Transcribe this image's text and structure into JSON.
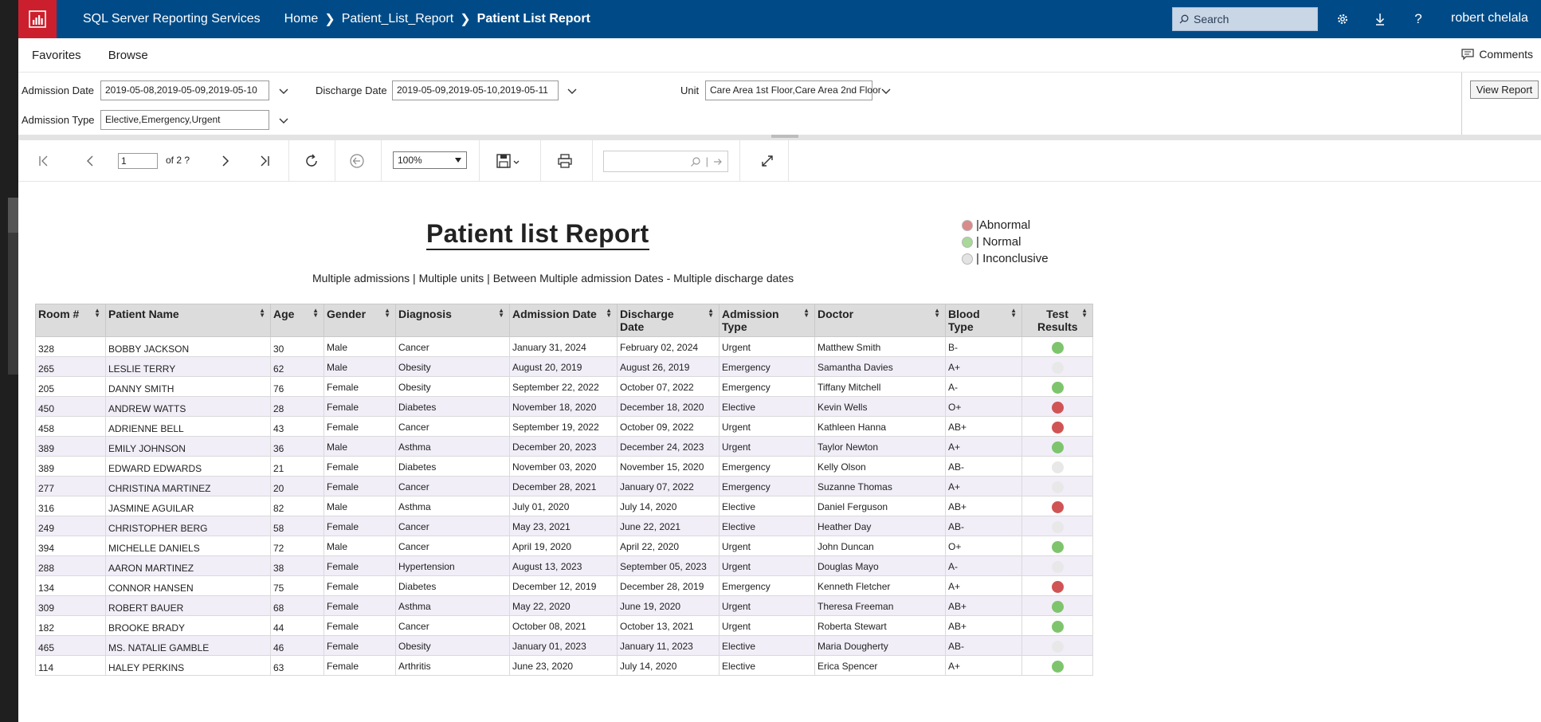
{
  "app": {
    "title": "SQL Server Reporting Services",
    "breadcrumbs": [
      "Home",
      "Patient_List_Report",
      "Patient List Report"
    ],
    "search_placeholder": "Search",
    "user": "robert chelala",
    "icons": [
      "settings-icon",
      "download-icon",
      "help-icon"
    ]
  },
  "nav": {
    "favorites": "Favorites",
    "browse": "Browse",
    "comments": "Comments"
  },
  "params": {
    "admission_date_label": "Admission Date",
    "admission_date_value": "2019-05-08,2019-05-09,2019-05-10",
    "discharge_date_label": "Discharge Date",
    "discharge_date_value": "2019-05-09,2019-05-10,2019-05-11",
    "unit_label": "Unit",
    "unit_value": "Care Area 1st Floor,Care Area 2nd Floor",
    "admission_type_label": "Admission Type",
    "admission_type_value": "Elective,Emergency,Urgent",
    "view_report": "View Report"
  },
  "toolbar": {
    "page_current": "1",
    "page_of": "of 2 ?",
    "zoom": "100%"
  },
  "report": {
    "title": "Patient list Report",
    "subtitle": "Multiple admissions | Multiple units | Between Multiple admission Dates  - Multiple discharge dates",
    "legend": [
      {
        "label": "|Abnormal",
        "color": "#d98a8a"
      },
      {
        "label": "| Normal",
        "color": "#a8d89a"
      },
      {
        "label": "| Inconclusive",
        "color": "#e3e3e3"
      }
    ],
    "status_colors": {
      "abnormal": "#d05454",
      "normal": "#7ec46c",
      "inconclusive": "#e8e8e8"
    },
    "columns": [
      "Room #",
      "Patient Name",
      "Age",
      "Gender",
      "Diagnosis",
      "Admission Date",
      "Discharge Date",
      "Admission Type",
      "Doctor",
      "Blood Type",
      "Test Results"
    ],
    "rows": [
      {
        "room": "328",
        "name": "BOBBY JACKSON",
        "age": "30",
        "gender": "Male",
        "diagnosis": "Cancer",
        "admission": "January 31, 2024",
        "discharge": "February 02, 2024",
        "type": "Urgent",
        "doctor": "Matthew Smith",
        "blood": "B-",
        "result": "normal"
      },
      {
        "room": "265",
        "name": "LESLIE TERRY",
        "age": "62",
        "gender": "Male",
        "diagnosis": "Obesity",
        "admission": "August 20, 2019",
        "discharge": "August 26, 2019",
        "type": "Emergency",
        "doctor": "Samantha Davies",
        "blood": "A+",
        "result": "inconclusive"
      },
      {
        "room": "205",
        "name": "DANNY SMITH",
        "age": "76",
        "gender": "Female",
        "diagnosis": "Obesity",
        "admission": "September 22, 2022",
        "discharge": "October 07, 2022",
        "type": "Emergency",
        "doctor": "Tiffany Mitchell",
        "blood": "A-",
        "result": "normal"
      },
      {
        "room": "450",
        "name": "ANDREW WATTS",
        "age": "28",
        "gender": "Female",
        "diagnosis": "Diabetes",
        "admission": "November 18, 2020",
        "discharge": "December 18, 2020",
        "type": "Elective",
        "doctor": "Kevin Wells",
        "blood": "O+",
        "result": "abnormal"
      },
      {
        "room": "458",
        "name": "ADRIENNE BELL",
        "age": "43",
        "gender": "Female",
        "diagnosis": "Cancer",
        "admission": "September 19, 2022",
        "discharge": "October 09, 2022",
        "type": "Urgent",
        "doctor": "Kathleen Hanna",
        "blood": "AB+",
        "result": "abnormal"
      },
      {
        "room": "389",
        "name": "EMILY JOHNSON",
        "age": "36",
        "gender": "Male",
        "diagnosis": "Asthma",
        "admission": "December 20, 2023",
        "discharge": "December 24, 2023",
        "type": "Urgent",
        "doctor": "Taylor Newton",
        "blood": "A+",
        "result": "normal"
      },
      {
        "room": "389",
        "name": "EDWARD EDWARDS",
        "age": "21",
        "gender": "Female",
        "diagnosis": "Diabetes",
        "admission": "November 03, 2020",
        "discharge": "November 15, 2020",
        "type": "Emergency",
        "doctor": "Kelly Olson",
        "blood": "AB-",
        "result": "inconclusive"
      },
      {
        "room": "277",
        "name": "CHRISTINA MARTINEZ",
        "age": "20",
        "gender": "Female",
        "diagnosis": "Cancer",
        "admission": "December 28, 2021",
        "discharge": "January 07, 2022",
        "type": "Emergency",
        "doctor": "Suzanne Thomas",
        "blood": "A+",
        "result": "inconclusive"
      },
      {
        "room": "316",
        "name": "JASMINE AGUILAR",
        "age": "82",
        "gender": "Male",
        "diagnosis": "Asthma",
        "admission": "July 01, 2020",
        "discharge": "July 14, 2020",
        "type": "Elective",
        "doctor": "Daniel Ferguson",
        "blood": "AB+",
        "result": "abnormal"
      },
      {
        "room": "249",
        "name": "CHRISTOPHER BERG",
        "age": "58",
        "gender": "Female",
        "diagnosis": "Cancer",
        "admission": "May 23, 2021",
        "discharge": "June 22, 2021",
        "type": "Elective",
        "doctor": "Heather Day",
        "blood": "AB-",
        "result": "inconclusive"
      },
      {
        "room": "394",
        "name": "MICHELLE DANIELS",
        "age": "72",
        "gender": "Male",
        "diagnosis": "Cancer",
        "admission": "April 19, 2020",
        "discharge": "April 22, 2020",
        "type": "Urgent",
        "doctor": "John Duncan",
        "blood": "O+",
        "result": "normal"
      },
      {
        "room": "288",
        "name": "AARON MARTINEZ",
        "age": "38",
        "gender": "Female",
        "diagnosis": "Hypertension",
        "admission": "August 13, 2023",
        "discharge": "September 05, 2023",
        "type": "Urgent",
        "doctor": "Douglas Mayo",
        "blood": "A-",
        "result": "inconclusive"
      },
      {
        "room": "134",
        "name": "CONNOR HANSEN",
        "age": "75",
        "gender": "Female",
        "diagnosis": "Diabetes",
        "admission": "December 12, 2019",
        "discharge": "December 28, 2019",
        "type": "Emergency",
        "doctor": "Kenneth Fletcher",
        "blood": "A+",
        "result": "abnormal"
      },
      {
        "room": "309",
        "name": "ROBERT BAUER",
        "age": "68",
        "gender": "Female",
        "diagnosis": "Asthma",
        "admission": "May 22, 2020",
        "discharge": "June 19, 2020",
        "type": "Urgent",
        "doctor": "Theresa Freeman",
        "blood": "AB+",
        "result": "normal"
      },
      {
        "room": "182",
        "name": "BROOKE BRADY",
        "age": "44",
        "gender": "Female",
        "diagnosis": "Cancer",
        "admission": "October 08, 2021",
        "discharge": "October 13, 2021",
        "type": "Urgent",
        "doctor": "Roberta Stewart",
        "blood": "AB+",
        "result": "normal"
      },
      {
        "room": "465",
        "name": "MS. NATALIE GAMBLE",
        "age": "46",
        "gender": "Female",
        "diagnosis": "Obesity",
        "admission": "January 01, 2023",
        "discharge": "January 11, 2023",
        "type": "Elective",
        "doctor": "Maria Dougherty",
        "blood": "AB-",
        "result": "inconclusive"
      },
      {
        "room": "114",
        "name": "HALEY PERKINS",
        "age": "63",
        "gender": "Female",
        "diagnosis": "Arthritis",
        "admission": "June 23, 2020",
        "discharge": "July 14, 2020",
        "type": "Elective",
        "doctor": "Erica Spencer",
        "blood": "A+",
        "result": "normal"
      }
    ]
  }
}
